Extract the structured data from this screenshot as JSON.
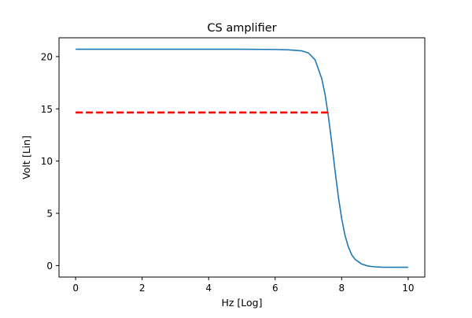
{
  "chart_data": {
    "type": "line",
    "title": "CS amplifier",
    "xlabel": "Hz [Log]",
    "ylabel": "Volt [Lin]",
    "xlim": [
      -0.5,
      10.5
    ],
    "ylim": [
      -1.1,
      21.8
    ],
    "x_ticks": [
      0,
      2,
      4,
      6,
      8,
      10
    ],
    "y_ticks": [
      0,
      5,
      10,
      15,
      20
    ],
    "grid": false,
    "series": [
      {
        "kind": "solid-line",
        "color": "#1f77b4",
        "x": [
          0,
          1,
          2,
          3,
          4,
          5,
          6,
          6.4,
          6.8,
          7.0,
          7.2,
          7.4,
          7.5,
          7.6,
          7.7,
          7.8,
          7.9,
          8.0,
          8.1,
          8.2,
          8.3,
          8.4,
          8.6,
          8.8,
          9.0,
          9.2,
          9.5,
          10.0
        ],
        "values": [
          20.7,
          20.7,
          20.7,
          20.7,
          20.7,
          20.7,
          20.68,
          20.65,
          20.55,
          20.35,
          19.7,
          17.9,
          16.4,
          14.3,
          11.8,
          9.1,
          6.6,
          4.5,
          2.9,
          1.8,
          1.05,
          0.6,
          0.15,
          -0.05,
          -0.12,
          -0.15,
          -0.16,
          -0.16
        ]
      },
      {
        "kind": "dashed-line",
        "color": "#ff0000",
        "x": [
          0,
          7.6
        ],
        "values": [
          14.65,
          14.65
        ]
      }
    ]
  }
}
